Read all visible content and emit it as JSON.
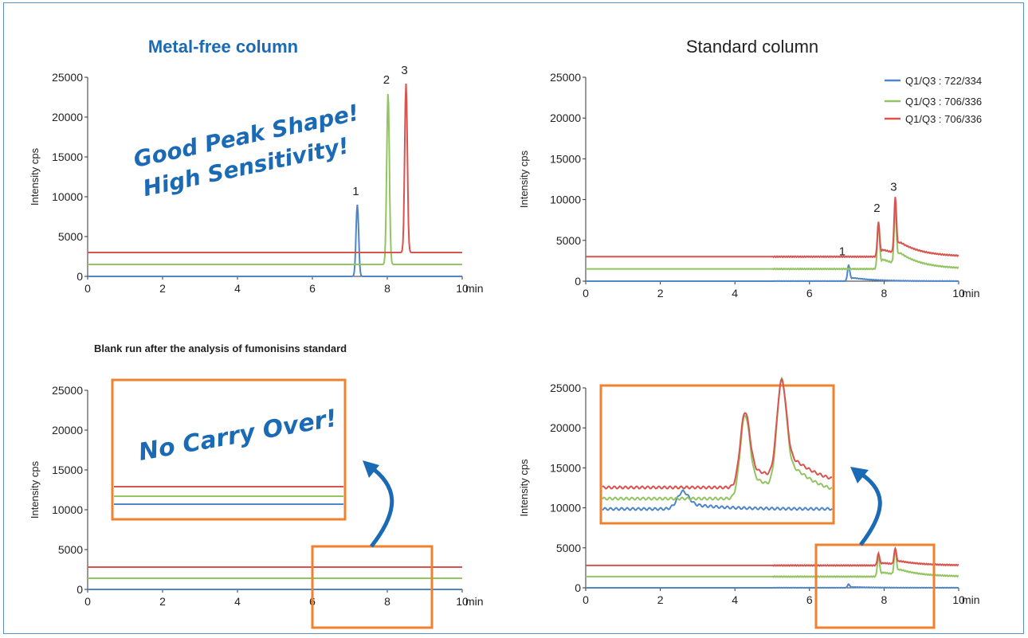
{
  "colors": {
    "blue": "#4f86c6",
    "green": "#93c462",
    "red": "#d9534f",
    "orange": "#f0822f",
    "title_blue": "#1a6ab5",
    "frame": "#5a8fc4"
  },
  "titles": {
    "metal_free": "Metal-free column",
    "standard": "Standard column",
    "blank_run": "Blank run after the analysis of fumonisins standard"
  },
  "callouts": {
    "good_peak_line1": "Good Peak Shape!",
    "good_peak_line2": "High Sensitivity!",
    "no_carry": "No Carry Over!"
  },
  "axis": {
    "ylabel": "Intensity cps",
    "xunit": "min",
    "x_ticks": [
      "0",
      "2",
      "4",
      "6",
      "8",
      "10"
    ],
    "y_ticks": [
      "0",
      "5000",
      "10000",
      "15000",
      "20000",
      "25000"
    ]
  },
  "legend": [
    {
      "label": "Q1/Q3 : 722/334",
      "color": "#4f86c6"
    },
    {
      "label": "Q1/Q3 : 706/336",
      "color": "#93c462"
    },
    {
      "label": "Q1/Q3 : 706/336",
      "color": "#d9534f"
    }
  ],
  "peak_labels": [
    "1",
    "2",
    "3"
  ],
  "chart_data": [
    {
      "type": "line",
      "title": "Metal-free column",
      "xlabel": "min",
      "ylabel": "Intensity cps",
      "xlim": [
        0,
        10
      ],
      "ylim": [
        0,
        25000
      ],
      "series": [
        {
          "baseline": 0,
          "peaks": [
            {
              "x": 7.2,
              "y": 9000,
              "label": "1"
            }
          ]
        },
        {
          "baseline": 1500,
          "peaks": [
            {
              "x": 8.02,
              "y": 23000,
              "label": "2"
            }
          ]
        },
        {
          "baseline": 3000,
          "peaks": [
            {
              "x": 8.5,
              "y": 24200,
              "label": "3"
            }
          ]
        }
      ]
    },
    {
      "type": "line",
      "title": "Standard column",
      "xlabel": "min",
      "ylabel": "Intensity cps",
      "xlim": [
        0,
        10
      ],
      "ylim": [
        0,
        25000
      ],
      "series": [
        {
          "name": "Q1/Q3 : 722/334",
          "baseline": 0,
          "peaks": [
            {
              "x": 7.05,
              "y": 2000,
              "label": "1"
            }
          ]
        },
        {
          "name": "Q1/Q3 : 706/336",
          "baseline": 1500,
          "peaks": [
            {
              "x": 7.85,
              "y": 7300,
              "label": "2"
            },
            {
              "x": 8.3,
              "y": 8600
            }
          ]
        },
        {
          "name": "Q1/Q3 : 706/336",
          "baseline": 3000,
          "peaks": [
            {
              "x": 7.85,
              "y": 7200
            },
            {
              "x": 8.3,
              "y": 9900,
              "label": "3"
            }
          ]
        }
      ]
    },
    {
      "type": "line",
      "title": "Blank run after the analysis of fumonisins standard",
      "xlabel": "min",
      "ylabel": "Intensity cps",
      "xlim": [
        0,
        10
      ],
      "ylim": [
        0,
        25000
      ],
      "series": [
        {
          "baseline": 0
        },
        {
          "baseline": 1400
        },
        {
          "baseline": 2800
        }
      ]
    },
    {
      "type": "line",
      "xlabel": "min",
      "ylabel": "Intensity cps",
      "xlim": [
        0,
        10
      ],
      "ylim": [
        0,
        25000
      ],
      "series": [
        {
          "name": "Q1/Q3 : 722/334",
          "baseline": 0,
          "peaks": [
            {
              "x": 7.05,
              "y": 450
            }
          ]
        },
        {
          "name": "Q1/Q3 : 706/336",
          "baseline": 1400,
          "peaks": [
            {
              "x": 7.85,
              "y": 4000
            },
            {
              "x": 8.3,
              "y": 4600
            }
          ]
        },
        {
          "name": "Q1/Q3 : 706/336",
          "baseline": 2800,
          "peaks": [
            {
              "x": 7.85,
              "y": 4300
            },
            {
              "x": 8.3,
              "y": 4800
            }
          ]
        }
      ]
    }
  ]
}
